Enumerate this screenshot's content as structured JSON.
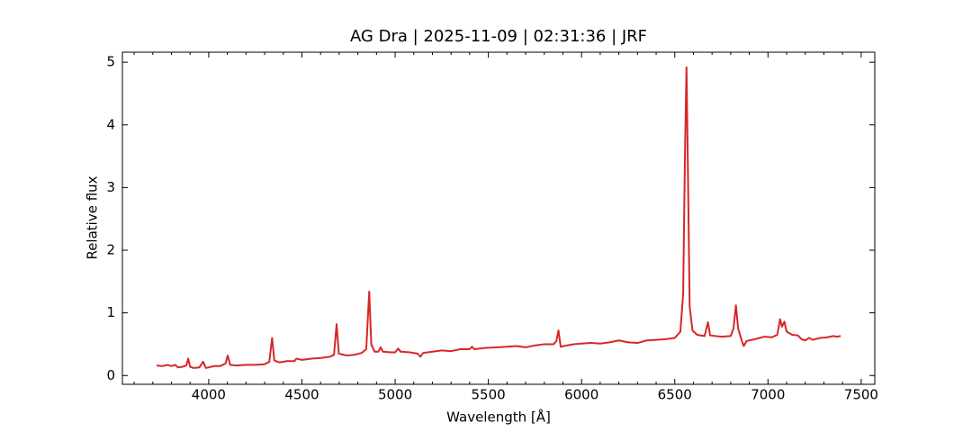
{
  "chart_data": {
    "type": "line",
    "title": "AG Dra | 2025-11-09 | 02:31:36 | JRF",
    "xlabel": "Wavelength [Å]",
    "ylabel": "Relative flux",
    "x": [
      3720,
      3750,
      3780,
      3800,
      3820,
      3835,
      3860,
      3880,
      3890,
      3900,
      3920,
      3950,
      3970,
      3985,
      4000,
      4030,
      4060,
      4090,
      4102,
      4115,
      4150,
      4200,
      4250,
      4300,
      4325,
      4340,
      4352,
      4380,
      4420,
      4460,
      4470,
      4500,
      4550,
      4600,
      4650,
      4672,
      4686,
      4698,
      4740,
      4780,
      4820,
      4845,
      4861,
      4872,
      4890,
      4910,
      4922,
      4935,
      4980,
      5000,
      5016,
      5030,
      5080,
      5120,
      5135,
      5150,
      5200,
      5250,
      5300,
      5350,
      5400,
      5412,
      5425,
      5480,
      5550,
      5600,
      5650,
      5700,
      5750,
      5800,
      5850,
      5865,
      5876,
      5888,
      5920,
      5960,
      6000,
      6050,
      6100,
      6150,
      6200,
      6250,
      6300,
      6350,
      6400,
      6450,
      6500,
      6530,
      6545,
      6555,
      6563,
      6570,
      6580,
      6595,
      6620,
      6660,
      6678,
      6690,
      6750,
      6800,
      6815,
      6828,
      6840,
      6860,
      6870,
      6885,
      6930,
      6980,
      7020,
      7050,
      7065,
      7075,
      7088,
      7100,
      7130,
      7160,
      7180,
      7200,
      7220,
      7240,
      7280,
      7320,
      7350,
      7370,
      7390
    ],
    "series": [
      {
        "color": "#d62728",
        "values": [
          0.16,
          0.15,
          0.17,
          0.15,
          0.17,
          0.13,
          0.14,
          0.16,
          0.27,
          0.14,
          0.12,
          0.13,
          0.22,
          0.12,
          0.13,
          0.15,
          0.15,
          0.19,
          0.32,
          0.17,
          0.16,
          0.17,
          0.17,
          0.18,
          0.22,
          0.6,
          0.24,
          0.21,
          0.23,
          0.23,
          0.27,
          0.25,
          0.27,
          0.28,
          0.3,
          0.33,
          0.82,
          0.35,
          0.32,
          0.33,
          0.36,
          0.42,
          1.34,
          0.5,
          0.38,
          0.38,
          0.45,
          0.38,
          0.37,
          0.37,
          0.43,
          0.38,
          0.37,
          0.35,
          0.3,
          0.36,
          0.38,
          0.4,
          0.39,
          0.42,
          0.42,
          0.46,
          0.42,
          0.44,
          0.45,
          0.46,
          0.47,
          0.45,
          0.48,
          0.5,
          0.5,
          0.55,
          0.72,
          0.46,
          0.48,
          0.5,
          0.51,
          0.52,
          0.51,
          0.53,
          0.56,
          0.53,
          0.52,
          0.56,
          0.57,
          0.58,
          0.6,
          0.7,
          1.3,
          3.6,
          4.92,
          3.4,
          1.1,
          0.72,
          0.65,
          0.63,
          0.85,
          0.64,
          0.62,
          0.63,
          0.75,
          1.12,
          0.75,
          0.55,
          0.47,
          0.55,
          0.58,
          0.62,
          0.61,
          0.65,
          0.9,
          0.78,
          0.86,
          0.7,
          0.65,
          0.64,
          0.58,
          0.56,
          0.6,
          0.57,
          0.6,
          0.61,
          0.63,
          0.62,
          0.63
        ]
      }
    ],
    "xlim": [
      3537,
      7573
    ],
    "ylim": [
      -0.14,
      5.16
    ],
    "xticks": [
      4000,
      4500,
      5000,
      5500,
      6000,
      6500,
      7000,
      7500
    ],
    "xminorticks": [
      3600,
      3700,
      3800,
      3900,
      4100,
      4200,
      4300,
      4400,
      4600,
      4700,
      4800,
      4900,
      5100,
      5200,
      5300,
      5400,
      5600,
      5700,
      5800,
      5900,
      6100,
      6200,
      6300,
      6400,
      6600,
      6700,
      6800,
      6900,
      7100,
      7200,
      7300,
      7400
    ],
    "yticks": [
      0,
      1,
      2,
      3,
      4,
      5
    ]
  }
}
